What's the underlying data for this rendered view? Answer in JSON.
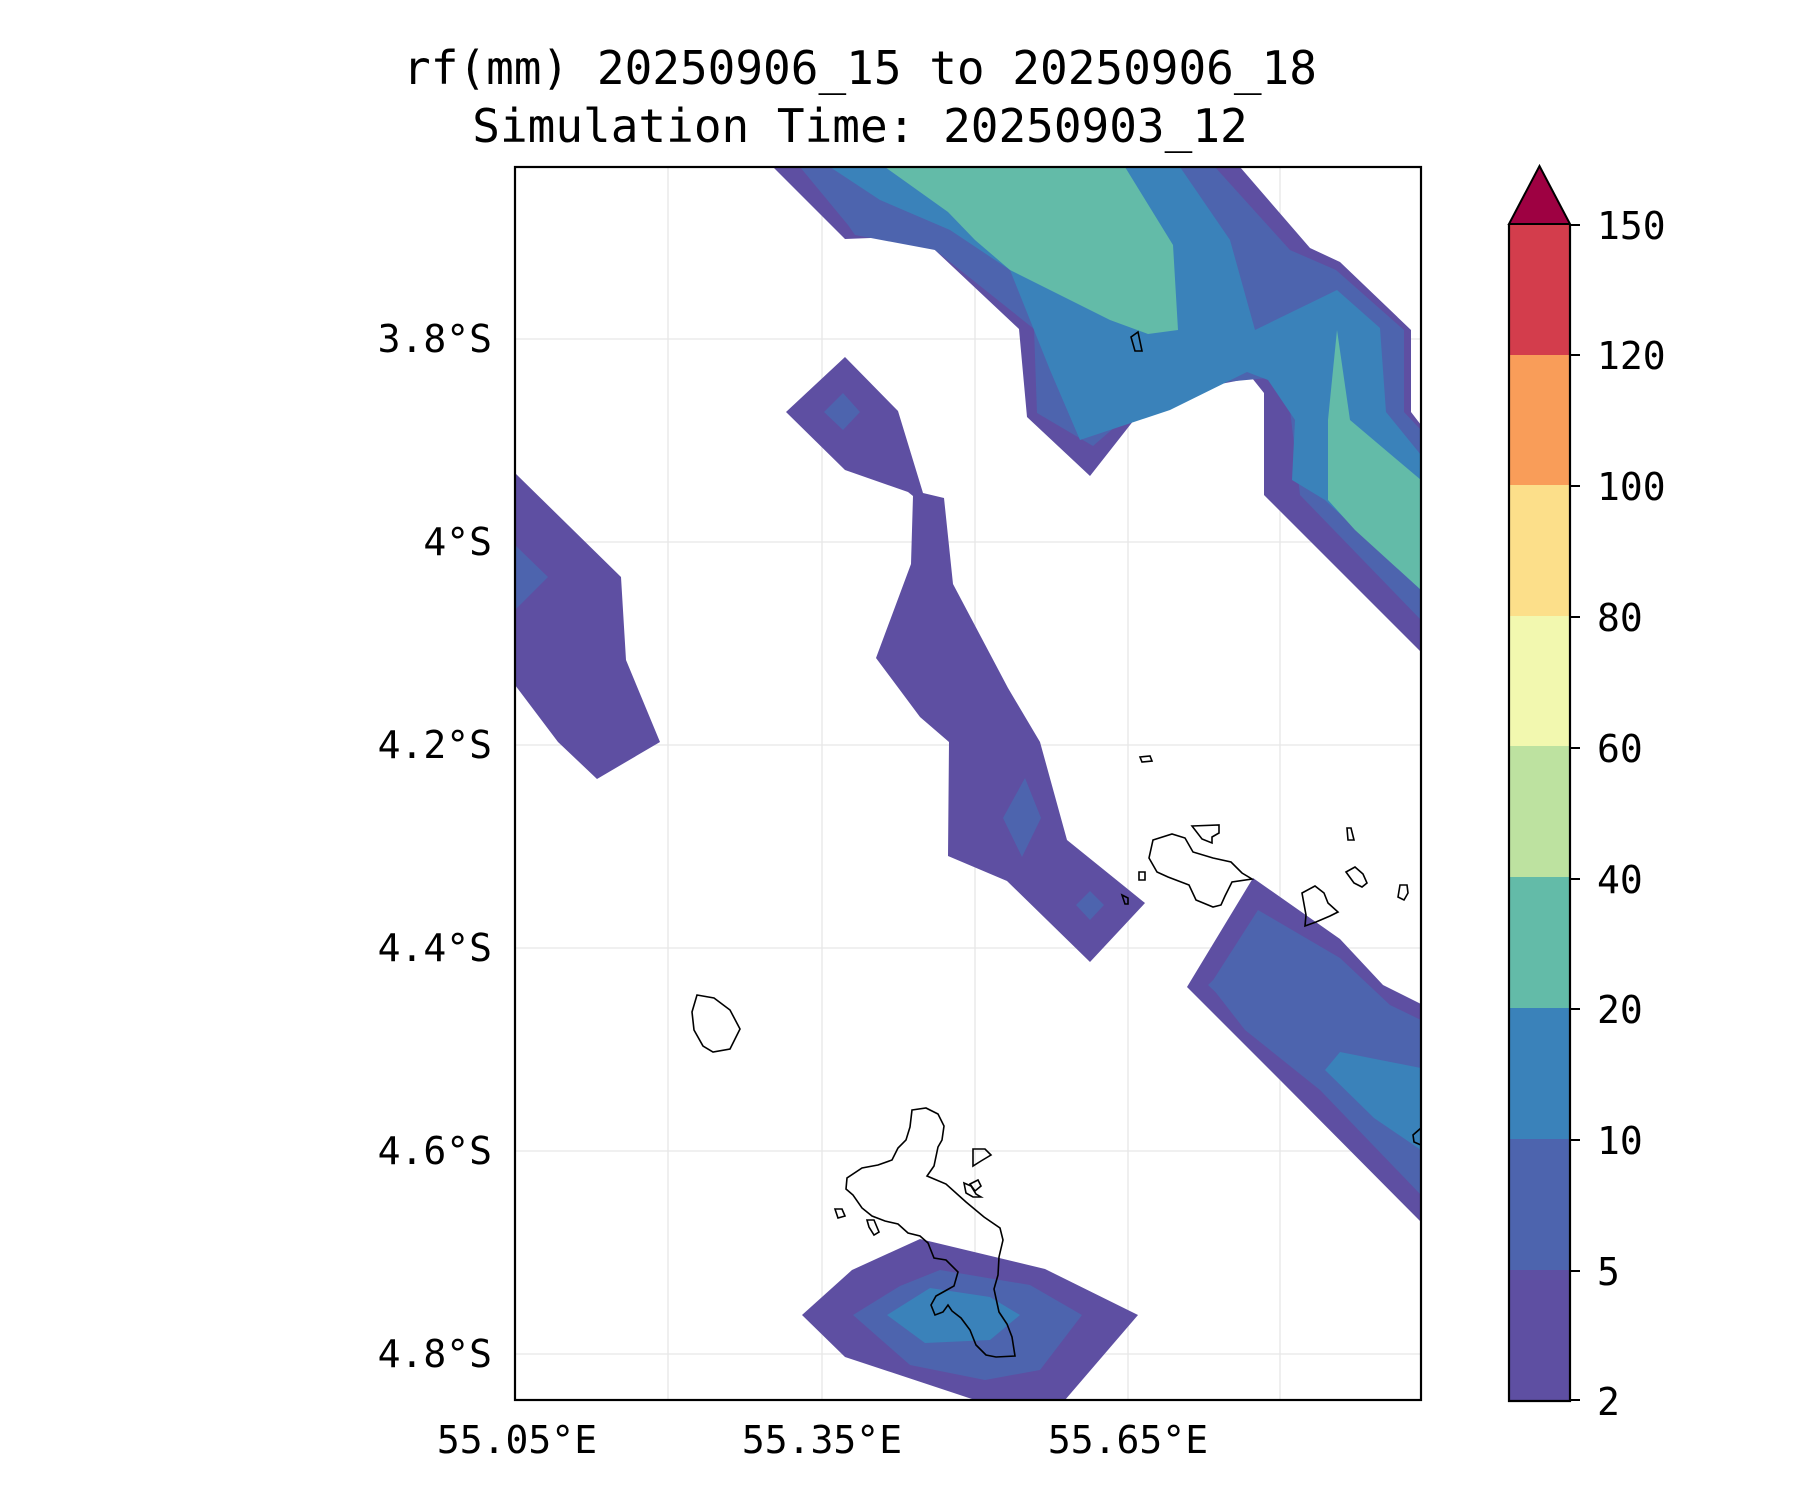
{
  "title": {
    "line1": "rf(mm) 20250906_15 to 20250906_18",
    "line2": "Simulation Time: 20250903_12"
  },
  "axes": {
    "y_ticks": [
      "3.8°S",
      "4°S",
      "4.2°S",
      "4.4°S",
      "4.6°S",
      "4.8°S"
    ],
    "x_ticks": [
      "55.05°E",
      "55.35°E",
      "55.65°E"
    ]
  },
  "colorbar": {
    "ticks": [
      "150",
      "120",
      "100",
      "80",
      "60",
      "40",
      "20",
      "10",
      "5",
      "2"
    ],
    "levels": [
      2,
      5,
      10,
      20,
      40,
      60,
      80,
      100,
      120,
      150
    ],
    "colors": [
      "#5E4FA2",
      "#4D64AE",
      "#3A82BA",
      "#63BBA8",
      "#BDE2A0",
      "#F2F8AF",
      "#FCDF8A",
      "#F99D59",
      "#D33D4C",
      "#9E0142"
    ],
    "extend": "max"
  },
  "map": {
    "projection": "lat-lon",
    "extent_lon": [
      55.05,
      55.93
    ],
    "extent_lat": [
      -4.84,
      -3.63
    ],
    "grid": true,
    "coastlines": true
  }
}
